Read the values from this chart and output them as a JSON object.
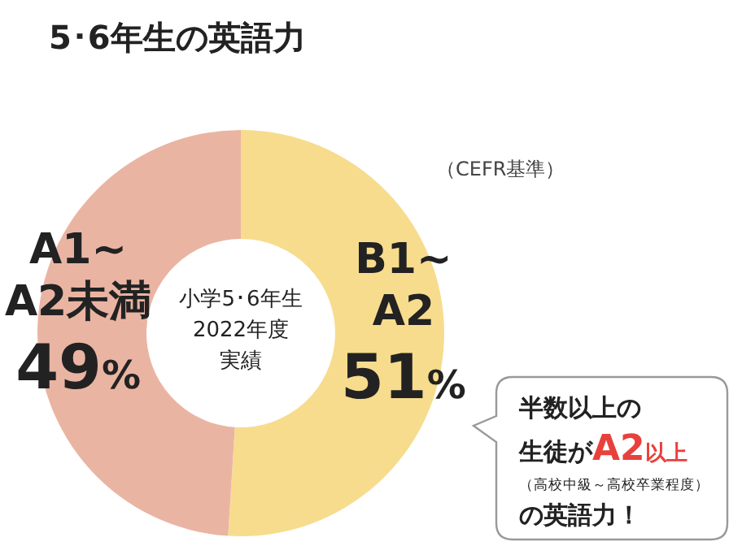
{
  "chart_data": {
    "type": "donut",
    "title": "5･6年生の英語力",
    "subtitle": "（CEFR基準）",
    "categories": [
      "B1~A2",
      "A1~A2未満"
    ],
    "values": [
      51,
      49
    ],
    "colors": [
      "#f7dc8e",
      "#eab4a3"
    ],
    "value_labels": [
      "51%",
      "49%"
    ],
    "annotations": [
      "小学5･6年生",
      "2022年度",
      "実績",
      "半数以上の",
      "生徒がA2以上",
      "（高校中級～高校卒業程度）",
      "の英語力！"
    ]
  }
}
